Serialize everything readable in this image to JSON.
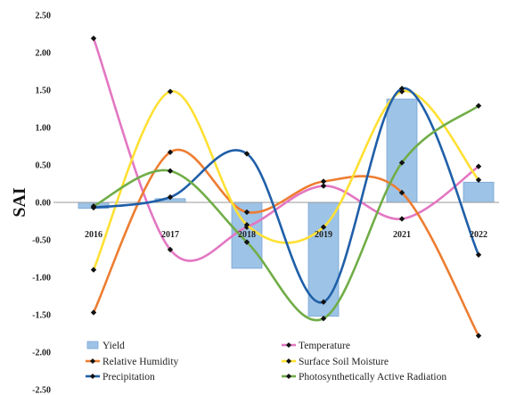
{
  "chart_data": {
    "type": "bar",
    "ylabel": "SAI",
    "ylim": [
      -2.5,
      2.5
    ],
    "yticks": [
      "2.50",
      "2.00",
      "1.50",
      "1.00",
      "0.50",
      "0.00",
      "-0.50",
      "-1.00",
      "-1.50",
      "-2.00",
      "-2.50"
    ],
    "categories": [
      "2016",
      "2017",
      "2018",
      "2019",
      "2021",
      "2022"
    ],
    "legend_position": "bottom",
    "series": [
      {
        "name": "Yield",
        "kind": "bar",
        "color": "#9dc3e6",
        "values": [
          -0.08,
          0.05,
          -0.88,
          -1.52,
          1.38,
          0.27
        ]
      },
      {
        "name": "Temperature",
        "kind": "line",
        "color": "#e377c2",
        "values": [
          2.19,
          -0.63,
          -0.33,
          0.22,
          -0.22,
          0.48
        ]
      },
      {
        "name": "Relative Humidity",
        "kind": "line",
        "color": "#ed7d31",
        "values": [
          -1.47,
          0.67,
          -0.13,
          0.28,
          0.13,
          -1.78
        ]
      },
      {
        "name": "Surface Soil Moisture",
        "kind": "line",
        "color": "#ffe033",
        "values": [
          -0.9,
          1.48,
          -0.3,
          -0.33,
          1.48,
          0.3
        ]
      },
      {
        "name": "Precipitation",
        "kind": "line",
        "color": "#1f5fa8",
        "values": [
          -0.07,
          0.07,
          0.65,
          -1.33,
          1.52,
          -0.7
        ]
      },
      {
        "name": "Photosynthetically Active Radiation",
        "kind": "line",
        "color": "#70ad47",
        "values": [
          -0.05,
          0.42,
          -0.53,
          -1.55,
          0.53,
          1.29
        ]
      }
    ]
  }
}
